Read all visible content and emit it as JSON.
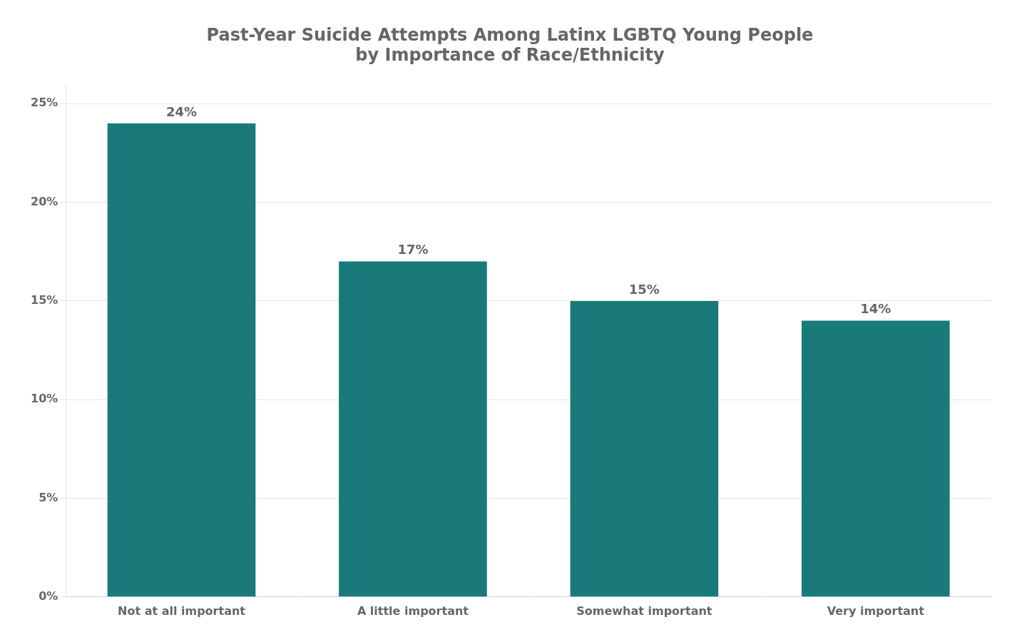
{
  "chart_data": {
    "type": "bar",
    "title": "Past-Year Suicide Attempts Among Latinx LGBTQ Young People\nby Importance of Race/Ethnicity",
    "categories": [
      "Not at all important",
      "A little important",
      "Somewhat important",
      "Very important"
    ],
    "values": [
      24,
      17,
      15,
      14
    ],
    "value_labels": [
      "24%",
      "17%",
      "15%",
      "14%"
    ],
    "data_labels": true,
    "color": "#1a7a7a",
    "ylim": [
      0,
      26
    ],
    "yticks": [
      {
        "value": 0,
        "label": "0%"
      },
      {
        "value": 5,
        "label": "5%"
      },
      {
        "value": 10,
        "label": "10%"
      },
      {
        "value": 15,
        "label": "15%"
      },
      {
        "value": 20,
        "label": "20%"
      },
      {
        "value": 25,
        "label": "25%"
      }
    ],
    "grid": true
  }
}
